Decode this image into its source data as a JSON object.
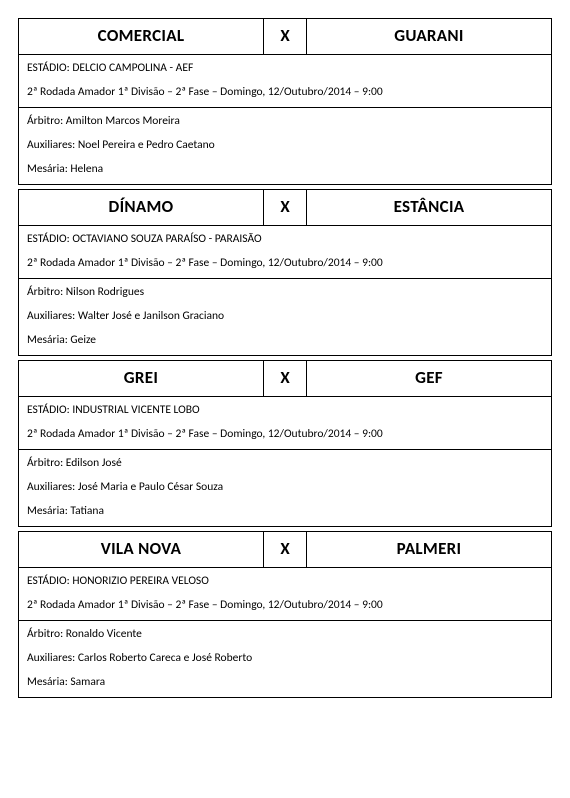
{
  "matches": [
    {
      "home": "COMERCIAL",
      "away": "GUARANI",
      "vs": "X",
      "stadium": "ESTÁDIO:  DELCIO CAMPOLINA - AEF",
      "round": "2ª Rodada Amador 1ª Divisão – 2ª Fase – Domingo, 12/Outubro/2014 – 9:00",
      "referee": "Árbitro: Amilton Marcos Moreira",
      "assistants": "Auxiliares: Noel Pereira e Pedro Caetano",
      "mesaria": "Mesária: Helena"
    },
    {
      "home": "DÍNAMO",
      "away": "ESTÂNCIA",
      "vs": "X",
      "stadium": "ESTÁDIO:  OCTAVIANO SOUZA PARAÍSO - PARAISÃO",
      "round": "2ª Rodada Amador 1ª Divisão – 2ª Fase – Domingo, 12/Outubro/2014 – 9:00",
      "referee": "Árbitro: Nilson Rodrigues",
      "assistants": "Auxiliares: Walter José e Janilson Graciano",
      "mesaria": "Mesária: Geize"
    },
    {
      "home": "GREI",
      "away": "GEF",
      "vs": "X",
      "stadium": "ESTÁDIO:  INDUSTRIAL VICENTE LOBO",
      "round": "2ª Rodada Amador 1ª Divisão – 2ª Fase – Domingo, 12/Outubro/2014 – 9:00",
      "referee": "Árbitro: Edilson José",
      "assistants": "Auxiliares: José Maria e Paulo César Souza",
      "mesaria": "Mesária: Tatiana"
    },
    {
      "home": "VILA NOVA",
      "away": "PALMERI",
      "vs": "X",
      "stadium": "ESTÁDIO:  HONORIZIO PEREIRA VELOSO",
      "round": "2ª Rodada Amador 1ª Divisão – 2ª Fase – Domingo, 12/Outubro/2014 – 9:00",
      "referee": "Árbitro: Ronaldo Vicente",
      "assistants": "Auxiliares: Carlos Roberto Careca e José Roberto",
      "mesaria": "Mesária: Samara"
    }
  ]
}
